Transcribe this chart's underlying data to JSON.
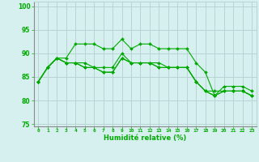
{
  "title": "",
  "xlabel": "Humidité relative (%)",
  "ylabel": "",
  "bg_color": "#d6f0f0",
  "grid_color": "#b8d4d4",
  "line_color": "#00aa00",
  "xlim": [
    -0.5,
    23.5
  ],
  "ylim": [
    74.5,
    101
  ],
  "xticks": [
    0,
    1,
    2,
    3,
    4,
    5,
    6,
    7,
    8,
    9,
    10,
    11,
    12,
    13,
    14,
    15,
    16,
    17,
    18,
    19,
    20,
    21,
    22,
    23
  ],
  "yticks": [
    75,
    80,
    85,
    90,
    95,
    100
  ],
  "series": [
    [
      84,
      87,
      89,
      89,
      92,
      92,
      92,
      91,
      91,
      93,
      91,
      92,
      92,
      91,
      91,
      91,
      91,
      88,
      86,
      81,
      83,
      83,
      83,
      82
    ],
    [
      84,
      87,
      89,
      88,
      88,
      88,
      87,
      87,
      87,
      90,
      88,
      88,
      88,
      88,
      87,
      87,
      87,
      84,
      82,
      82,
      82,
      82,
      82,
      81
    ],
    [
      84,
      87,
      89,
      88,
      88,
      87,
      87,
      86,
      86,
      89,
      88,
      88,
      88,
      87,
      87,
      87,
      87,
      84,
      82,
      81,
      82,
      82,
      82,
      81
    ],
    [
      84,
      87,
      89,
      88,
      88,
      87,
      87,
      86,
      86,
      89,
      88,
      88,
      88,
      87,
      87,
      87,
      87,
      84,
      82,
      81,
      82,
      82,
      82,
      81
    ]
  ]
}
